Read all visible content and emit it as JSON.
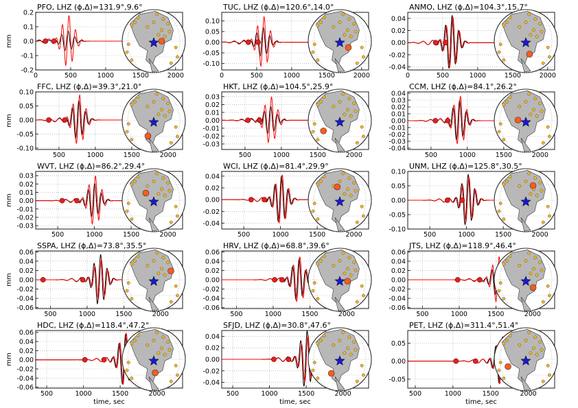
{
  "figure": {
    "xlabel": "time, sec",
    "ylabel": "mm",
    "series_colors": {
      "observed": "#000000",
      "synthetic": "#ff0000"
    },
    "marker_colors": {
      "pick": "#dd2222",
      "event_star": "#1a1acc",
      "station_target": "#ff5a1f",
      "stations": "#f4b81c",
      "land": "#b8b8b8"
    }
  },
  "chart_data": [
    {
      "type": "line",
      "title": "PFO, LHZ (ϕ,Δ)=131.9°,9.6°",
      "xlim": [
        0,
        2100
      ],
      "ylim": [
        -0.2,
        0.2
      ],
      "xticks": [
        "0",
        "500",
        "1000",
        "1500",
        "2000"
      ],
      "yticks": [
        "-0.2",
        "-0.1",
        "0.0",
        "0.1",
        "0.2"
      ],
      "ylabel": "mm",
      "xlabel": "",
      "arrival_s": 450,
      "obs_amp": 0.07,
      "syn_amp": 0.18,
      "pick_times": [
        140,
        260
      ],
      "grid": true
    },
    {
      "type": "line",
      "title": "TUC, LHZ (ϕ,Δ)=120.6°,14.0°",
      "xlim": [
        0,
        2100
      ],
      "ylim": [
        -0.13,
        0.14
      ],
      "xticks": [
        "0",
        "500",
        "1000",
        "1500",
        "2000"
      ],
      "yticks": [
        "-0.10",
        "-0.05",
        "0.00",
        "0.05",
        "0.10"
      ],
      "ylabel": "",
      "xlabel": "",
      "arrival_s": 580,
      "obs_amp": 0.07,
      "syn_amp": 0.12,
      "pick_times": [
        380,
        520
      ],
      "grid": true
    },
    {
      "type": "line",
      "title": "ANMO, LHZ (ϕ,Δ)=104.3°,15.7°",
      "xlim": [
        0,
        2100
      ],
      "ylim": [
        -0.045,
        0.05
      ],
      "xticks": [
        "0",
        "500",
        "1000",
        "1500",
        "2000"
      ],
      "yticks": [
        "-0.04",
        "-0.02",
        "0.00",
        "0.02",
        "0.04"
      ],
      "ylabel": "",
      "xlabel": "",
      "arrival_s": 620,
      "obs_amp": 0.045,
      "syn_amp": 0.043,
      "pick_times": [
        400,
        540
      ],
      "grid": true
    },
    {
      "type": "line",
      "title": "FFC, LHZ (ϕ,Δ)=39.3°,21.0°",
      "xlim": [
        180,
        2200
      ],
      "ylim": [
        -0.105,
        0.1
      ],
      "xticks": [
        "500",
        "1000",
        "1500",
        "2000"
      ],
      "yticks": [
        "-0.10",
        "-0.05",
        "0.00",
        "0.05",
        "0.10"
      ],
      "ylabel": "mm",
      "xlabel": "",
      "arrival_s": 760,
      "obs_amp": 0.07,
      "syn_amp": 0.09,
      "pick_times": [
        360,
        580
      ],
      "grid": true
    },
    {
      "type": "line",
      "title": "HKT, LHZ (ϕ,Δ)=104.5°,25.9°",
      "xlim": [
        180,
        2200
      ],
      "ylim": [
        -0.037,
        0.036
      ],
      "xticks": [
        "500",
        "1000",
        "1500",
        "2000"
      ],
      "yticks": [
        "-0.03",
        "-0.02",
        "-0.01",
        "0.00",
        "0.01",
        "0.02",
        "0.03"
      ],
      "ylabel": "",
      "xlabel": "",
      "arrival_s": 840,
      "obs_amp": 0.018,
      "syn_amp": 0.03,
      "pick_times": [
        540,
        700
      ],
      "grid": true
    },
    {
      "type": "line",
      "title": "CCM, LHZ (ϕ,Δ)=84.1°,26.2°",
      "xlim": [
        180,
        2200
      ],
      "ylim": [
        -0.042,
        0.042
      ],
      "xticks": [
        "500",
        "1000",
        "1500",
        "2000"
      ],
      "yticks": [
        "-0.04",
        "-0.03",
        "-0.02",
        "-0.01",
        "0.00",
        "0.01",
        "0.02",
        "0.03",
        "0.04"
      ],
      "ylabel": "",
      "xlabel": "",
      "arrival_s": 880,
      "obs_amp": 0.03,
      "syn_amp": 0.036,
      "pick_times": [
        560,
        730
      ],
      "grid": true
    },
    {
      "type": "line",
      "title": "WVT, LHZ (ϕ,Δ)=86.2°,29.4°",
      "xlim": [
        200,
        2200
      ],
      "ylim": [
        -0.034,
        0.035
      ],
      "xticks": [
        "500",
        "1000",
        "1500",
        "2000"
      ],
      "yticks": [
        "-0.03",
        "-0.02",
        "-0.01",
        "0.00",
        "0.01",
        "0.02",
        "0.03"
      ],
      "ylabel": "mm",
      "xlabel": "",
      "arrival_s": 990,
      "obs_amp": 0.021,
      "syn_amp": 0.03,
      "pick_times": [
        560,
        760
      ],
      "grid": true
    },
    {
      "type": "line",
      "title": "WCI, LHZ (ϕ,Δ)=81.4°,29.9°",
      "xlim": [
        200,
        2200
      ],
      "ylim": [
        -0.05,
        0.048
      ],
      "xticks": [
        "500",
        "1000",
        "1500",
        "2000"
      ],
      "yticks": [
        "-0.04",
        "-0.02",
        "0.00",
        "0.02",
        "0.04"
      ],
      "ylabel": "",
      "xlabel": "",
      "arrival_s": 1000,
      "obs_amp": 0.04,
      "syn_amp": 0.042,
      "pick_times": [
        600,
        780
      ],
      "grid": true
    },
    {
      "type": "line",
      "title": "UNM, LHZ (ϕ,Δ)=125.8°,30.5°",
      "xlim": [
        200,
        2200
      ],
      "ylim": [
        -0.1,
        0.1
      ],
      "xticks": [
        "500",
        "1000",
        "1500",
        "2000"
      ],
      "yticks": [
        "-0.10",
        "-0.05",
        "0.00",
        "0.05",
        "0.10"
      ],
      "ylabel": "",
      "xlabel": "",
      "arrival_s": 1010,
      "obs_amp": 0.09,
      "syn_amp": 0.08,
      "pick_times": [
        740,
        940
      ],
      "grid": true
    },
    {
      "type": "line",
      "title": "SSPA, LHZ (ϕ,Δ)=73.8°,35.5°",
      "xlim": [
        300,
        2300
      ],
      "ylim": [
        -0.062,
        0.062
      ],
      "xticks": [
        "500",
        "1000",
        "1500",
        "2000"
      ],
      "yticks": [
        "-0.06",
        "-0.04",
        "-0.02",
        "0.00",
        "0.02",
        "0.04",
        "0.06"
      ],
      "ylabel": "mm",
      "xlabel": "",
      "arrival_s": 1170,
      "obs_amp": 0.055,
      "syn_amp": 0.045,
      "pick_times": [
        400,
        940
      ],
      "grid": true
    },
    {
      "type": "line",
      "title": "HRV, LHZ (ϕ,Δ)=68.8°,39.6°",
      "xlim": [
        300,
        2300
      ],
      "ylim": [
        -0.062,
        0.062
      ],
      "xticks": [
        "500",
        "1000",
        "1500",
        "2000"
      ],
      "yticks": [
        "-0.06",
        "-0.04",
        "-0.02",
        "0.00",
        "0.02",
        "0.04",
        "0.06"
      ],
      "ylabel": "",
      "xlabel": "",
      "arrival_s": 1340,
      "obs_amp": 0.045,
      "syn_amp": 0.05,
      "pick_times": [
        1020,
        1120
      ],
      "grid": true
    },
    {
      "type": "line",
      "title": "JTS, LHZ (ϕ,Δ)=118.9°,46.4°",
      "xlim": [
        300,
        2300
      ],
      "ylim": [
        -0.062,
        0.062
      ],
      "xticks": [
        "500",
        "1000",
        "1500",
        "2000"
      ],
      "yticks": [
        "-0.06",
        "-0.04",
        "-0.02",
        "0.00",
        "0.02",
        "0.04",
        "0.06"
      ],
      "ylabel": "",
      "xlabel": "",
      "arrival_s": 1520,
      "obs_amp": 0.035,
      "syn_amp": 0.05,
      "pick_times": [
        980,
        1280
      ],
      "grid": true
    },
    {
      "type": "line",
      "title": "HDC, LHZ (ϕ,Δ)=118.4°,47.2°",
      "xlim": [
        350,
        2350
      ],
      "ylim": [
        -0.062,
        0.064
      ],
      "xticks": [
        "500",
        "1000",
        "1500",
        "2000"
      ],
      "yticks": [
        "-0.06",
        "-0.04",
        "-0.02",
        "0.00",
        "0.02",
        "0.04",
        "0.06"
      ],
      "ylabel": "mm",
      "xlabel": "time, sec",
      "arrival_s": 1560,
      "obs_amp": 0.056,
      "syn_amp": 0.058,
      "pick_times": [
        1020,
        1280
      ],
      "grid": true
    },
    {
      "type": "line",
      "title": "SFJD, LHZ (ϕ,Δ)=30.8°,47.6°",
      "xlim": [
        350,
        2350
      ],
      "ylim": [
        -0.05,
        0.05
      ],
      "xticks": [
        "500",
        "1000",
        "1500",
        "2000"
      ],
      "yticks": [
        "-0.04",
        "-0.02",
        "0.00",
        "0.02",
        "0.04"
      ],
      "ylabel": "",
      "xlabel": "time, sec",
      "arrival_s": 1500,
      "obs_amp": 0.05,
      "syn_amp": 0.042,
      "pick_times": [
        1060,
        1260
      ],
      "grid": true
    },
    {
      "type": "line",
      "title": "PET, LHZ (ϕ,Δ)=311.4°,51.4°",
      "xlim": [
        400,
        2350
      ],
      "ylim": [
        -0.075,
        0.085
      ],
      "xticks": [
        "500",
        "1000",
        "1500",
        "2000"
      ],
      "yticks": [
        "-0.05",
        "0.00",
        "0.05"
      ],
      "ylabel": "",
      "xlabel": "time, sec",
      "arrival_s": 1640,
      "obs_amp": 0.065,
      "syn_amp": 0.068,
      "pick_times": [
        1040,
        1300
      ],
      "grid": true
    }
  ]
}
